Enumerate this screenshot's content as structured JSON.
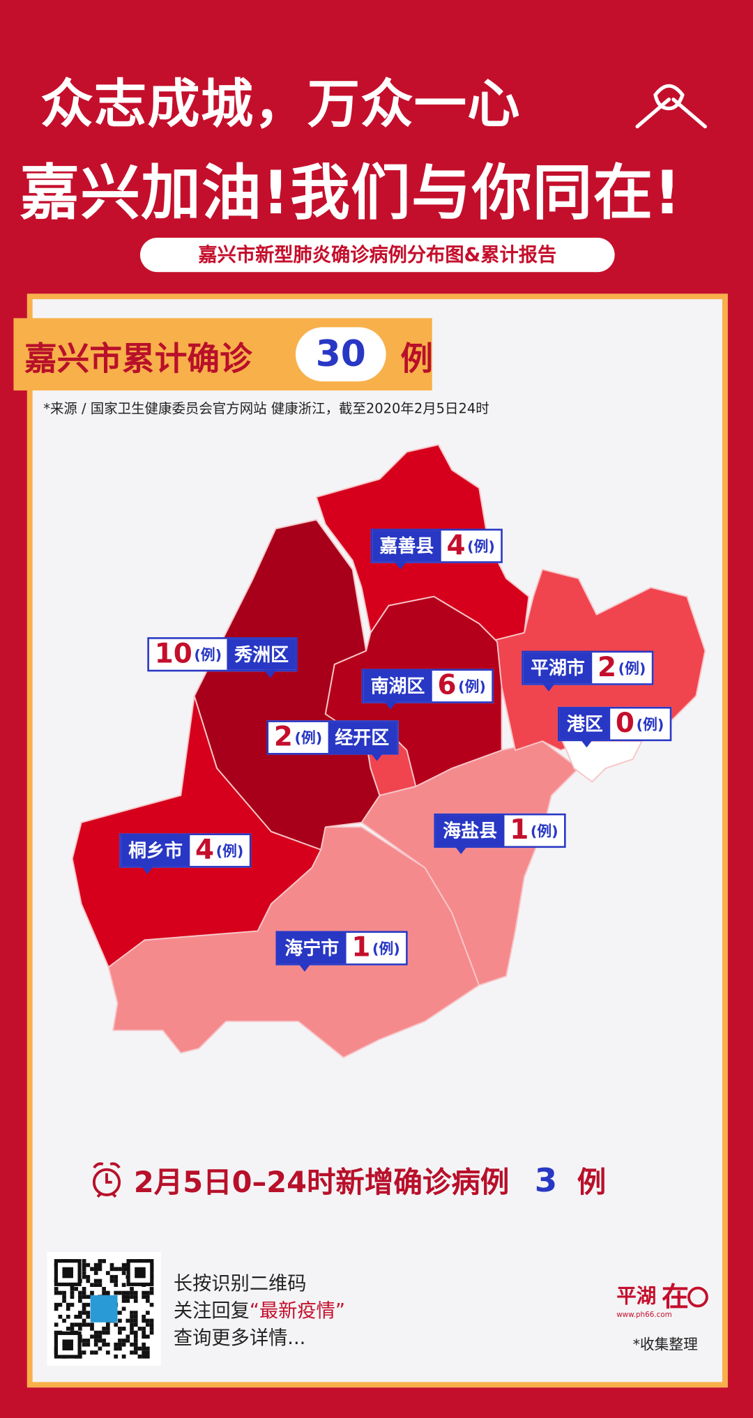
{
  "header": {
    "line1": "众志成城，万众一心",
    "line2": "嘉兴加油!我们与你同在!",
    "subtitle": "嘉兴市新型肺炎确诊病例分布图&累计报告",
    "icon": "handshake-icon"
  },
  "summary": {
    "label": "嘉兴市累计确诊",
    "total": "30",
    "unit": "例",
    "source": "*来源 / 国家卫生健康委员会官方网站  健康浙江，截至2020年2月5日24时"
  },
  "map": {
    "unit_label": "(例)",
    "regions": [
      {
        "name": "嘉善县",
        "count": "4",
        "color": "#d6001c"
      },
      {
        "name": "秀洲区",
        "count": "10",
        "color": "#a8001a"
      },
      {
        "name": "南湖区",
        "count": "6",
        "color": "#b5001b"
      },
      {
        "name": "平湖市",
        "count": "2",
        "color": "#f0454f"
      },
      {
        "name": "港区",
        "count": "0",
        "color": "#ffffff"
      },
      {
        "name": "经开区",
        "count": "2",
        "color": "#f0454f"
      },
      {
        "name": "海盐县",
        "count": "1",
        "color": "#f58a8d"
      },
      {
        "name": "桐乡市",
        "count": "4",
        "color": "#d6001c"
      },
      {
        "name": "海宁市",
        "count": "1",
        "color": "#f58a8d"
      }
    ]
  },
  "new_cases": {
    "label": "2月5日0–24时新增确诊病例",
    "count": "3",
    "unit": "例",
    "icon": "alarm-clock-icon"
  },
  "footer": {
    "qr_line1": "长按识别二维码",
    "qr_line2_prefix": "关注回复",
    "qr_line2_keyword": "“最新疫情”",
    "qr_line3": "查询更多详情...",
    "logo_text": "平湖在线",
    "logo_url": "www.ph66.com",
    "collect": "*收集整理"
  },
  "colors": {
    "background": "#c40f2c",
    "accent": "#f8b04a",
    "blue": "#2837c4"
  }
}
